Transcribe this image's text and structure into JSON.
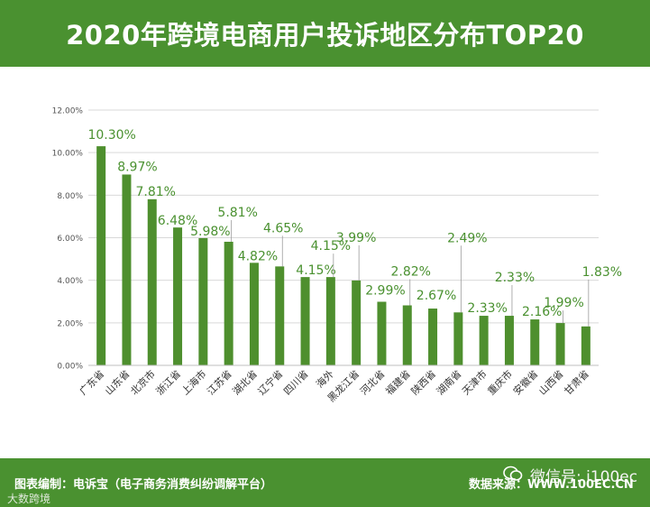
{
  "header": {
    "title": "2020年跨境电商用户投诉地区分布TOP20"
  },
  "footer": {
    "left_text": "图表编制：电诉宝（电子商务消费纠纷调解平台）",
    "right_text": "数据来源：WWW.100EC.CN",
    "wechat_text": "微信号: i100ec",
    "brand_text": "大数跨境"
  },
  "colors": {
    "bar": "#4e8f2e",
    "label": "#4a9130",
    "header": "#4a9130",
    "grid": "#d9d9d9"
  },
  "chart_data": {
    "type": "bar",
    "title": "2020年跨境电商用户投诉地区分布TOP20",
    "categories": [
      "广东省",
      "山东省",
      "北京市",
      "浙江省",
      "上海市",
      "江苏省",
      "湖北省",
      "辽宁省",
      "四川省",
      "海外",
      "黑龙江省",
      "河北省",
      "福建省",
      "陕西省",
      "湖南省",
      "天津市",
      "重庆市",
      "安徽省",
      "山西省",
      "甘肃省"
    ],
    "values": [
      10.3,
      8.97,
      7.81,
      6.48,
      5.98,
      5.81,
      4.82,
      4.65,
      4.15,
      4.15,
      3.99,
      2.99,
      2.82,
      2.67,
      2.49,
      2.33,
      2.33,
      2.16,
      1.99,
      1.83
    ],
    "data_labels": [
      "10.30%",
      "8.97%",
      "7.81%",
      "6.48%",
      "5.98%",
      "5.81%",
      "4.82%",
      "4.65%",
      "4.15%",
      "4.15%",
      "3.99%",
      "2.99%",
      "2.82%",
      "2.67%",
      "2.49%",
      "2.33%",
      "2.33%",
      "2.16%",
      "1.99%",
      "1.83%"
    ],
    "y_ticks": [
      "0.00%",
      "2.00%",
      "4.00%",
      "6.00%",
      "8.00%",
      "10.00%",
      "12.00%"
    ],
    "ylim": [
      0,
      12
    ],
    "xlabel": "",
    "ylabel": "",
    "grid": true
  }
}
